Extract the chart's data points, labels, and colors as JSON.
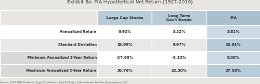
{
  "title": "Exhibit 8a: FIA Hypothetical Net Return (1927-2016)",
  "source": "Source: 2017 SBBI Yearbook, Roger G. Ibbotson, Duff & Phelps; Zebra Capital; AnnGen Development, LLC",
  "col_headers": [
    "Large Cap Stocks",
    "Long Term\nGov't Bonds",
    "FIA"
  ],
  "row_labels": [
    "Annualized Return",
    "Standard Deviation",
    "Minimum Annualized 3-Year Return",
    "Maximum Annualized 3-Year Return"
  ],
  "data": [
    [
      "9.92%",
      "5.32%",
      "5.81%"
    ],
    [
      "19.99%",
      "9.97%",
      "10.01%"
    ],
    [
      "-27.00%",
      "-2.32%",
      "0.00%"
    ],
    [
      "30.76%",
      "23.30%",
      "27.56%"
    ]
  ],
  "header_bg": "#b8ccd8",
  "row_bg_white": "#ffffff",
  "row_bg_gray": "#e8e8e8",
  "label_bg_gray": "#d8d8d8",
  "fia_header_bg": "#a8bfce",
  "fia_row_white": "#ccdbe6",
  "fia_row_gray": "#b8ccda",
  "text_dark": "#2a2a2a",
  "text_source": "#555555",
  "bg_color": "#e8e6e0",
  "border_color": "#ffffff",
  "title_color": "#333333"
}
